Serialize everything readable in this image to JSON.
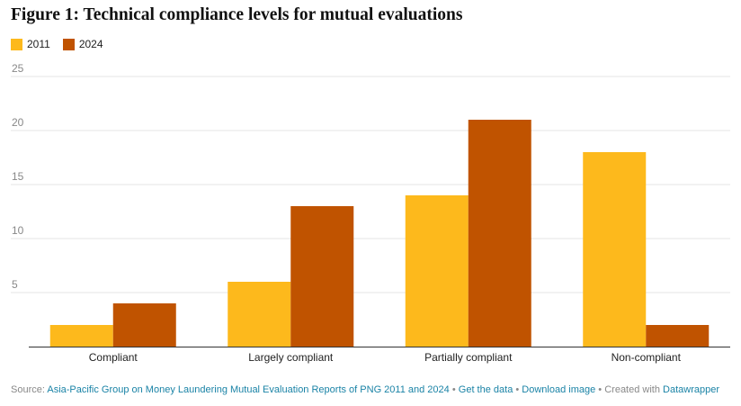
{
  "title": "Figure 1: Technical compliance levels for mutual evaluations",
  "colors": {
    "s2011": "#fdb91c",
    "s2024": "#c05300"
  },
  "chart_data": {
    "type": "bar",
    "categories": [
      "Compliant",
      "Largely compliant",
      "Partially compliant",
      "Non-compliant"
    ],
    "series": [
      {
        "name": "2011",
        "values": [
          2,
          6,
          14,
          18
        ]
      },
      {
        "name": "2024",
        "values": [
          4,
          13,
          21,
          2
        ]
      }
    ],
    "ylim": [
      0,
      25
    ],
    "yticks": [
      "5",
      "10",
      "15",
      "20",
      "25"
    ],
    "legend": "top-left",
    "grid": true
  },
  "footer": {
    "source_label": "Source:",
    "source_link": "Asia-Pacific Group on Money Laundering Mutual Evaluation Reports of PNG 2011 and 2024",
    "sep1": "•",
    "get_data": "Get the data",
    "sep2": "•",
    "download": "Download image",
    "sep3": "•",
    "created_with": "Created with",
    "datawrapper": "Datawrapper"
  }
}
